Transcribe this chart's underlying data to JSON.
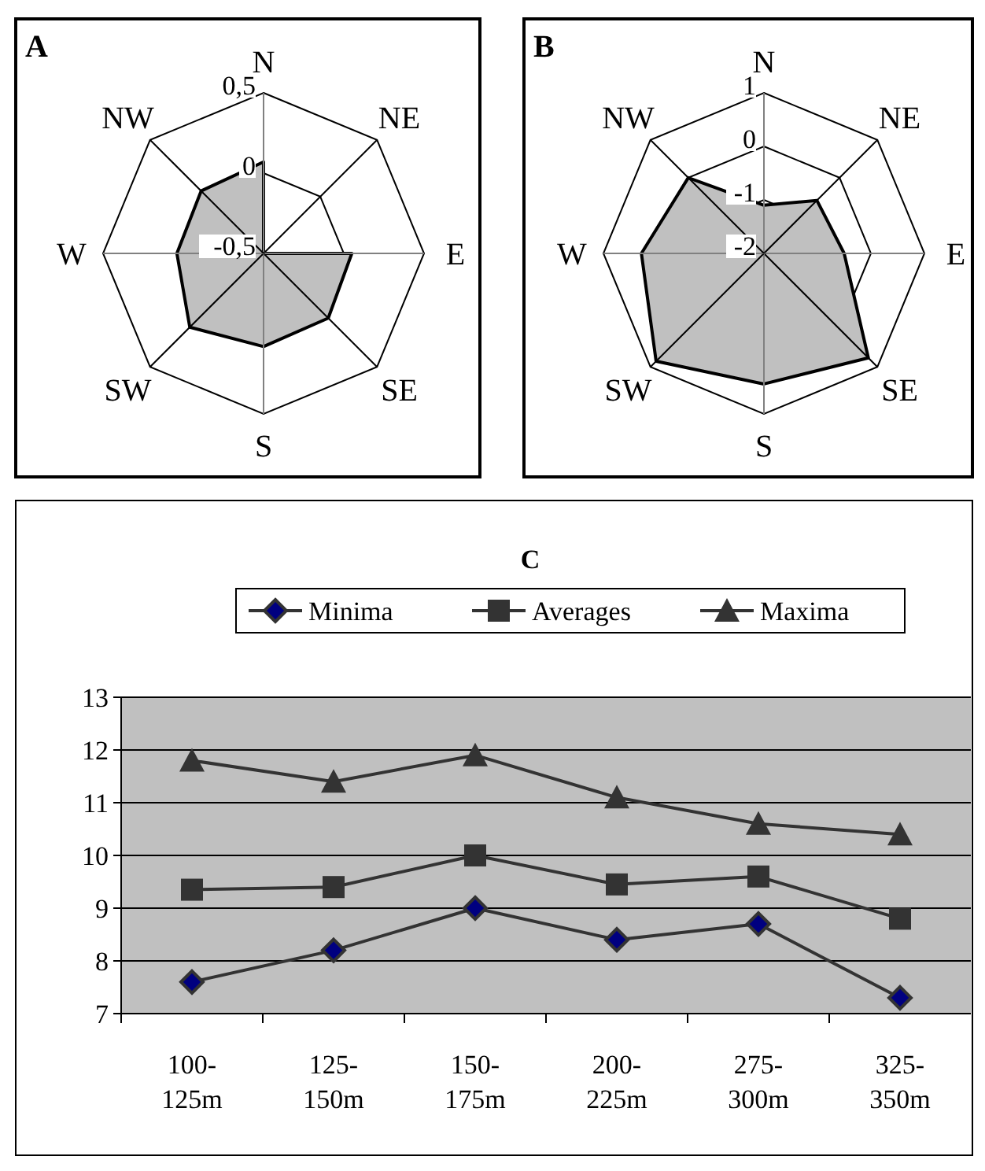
{
  "chart_data": [
    {
      "type": "radar",
      "title": "A",
      "categories": [
        "N",
        "NE",
        "E",
        "SE",
        "S",
        "SW",
        "W",
        "NW"
      ],
      "ylim": [
        -0.5,
        0.5
      ],
      "yticks": [
        {
          "value": -0.5,
          "label": "-0,5"
        },
        0,
        {
          "value": 0.5,
          "label": "0,5"
        }
      ],
      "series": [
        {
          "color": "#c0c0c0",
          "values": [
            0.07,
            -0.5,
            0.05,
            0.07,
            0.08,
            0.15,
            0.04,
            0.05
          ]
        }
      ]
    },
    {
      "type": "radar",
      "title": "B",
      "categories": [
        "N",
        "NE",
        "E",
        "SE",
        "S",
        "SW",
        "W",
        "NW"
      ],
      "ylim": [
        -2,
        1
      ],
      "yticks": [
        -2,
        -1,
        0,
        1
      ],
      "series": [
        {
          "color": "#c0c0c0",
          "values": [
            -1.1,
            -0.6,
            -0.5,
            0.76,
            0.44,
            0.85,
            0.29,
            0
          ]
        }
      ]
    },
    {
      "type": "line",
      "title": "C",
      "categories": [
        "100-125m",
        "125-150m",
        "150-175m",
        "200-225m",
        "275-300m",
        "325-350m"
      ],
      "ylim": [
        7,
        13
      ],
      "yticks": [
        7,
        8,
        9,
        10,
        11,
        12,
        13
      ],
      "grid": "y",
      "legend": "top",
      "series": [
        {
          "name": "Minima",
          "color": "#000080",
          "marker": "diamond",
          "values": [
            7.6,
            8.2,
            9.0,
            8.4,
            8.7,
            7.3
          ]
        },
        {
          "name": "Averages",
          "color": "#333333",
          "marker": "square",
          "values": [
            9.35,
            9.4,
            10.0,
            9.45,
            9.6,
            8.8
          ]
        },
        {
          "name": "Maxima",
          "color": "#333333",
          "marker": "triangle",
          "values": [
            11.8,
            11.4,
            11.9,
            11.1,
            10.6,
            10.4
          ]
        }
      ]
    }
  ]
}
